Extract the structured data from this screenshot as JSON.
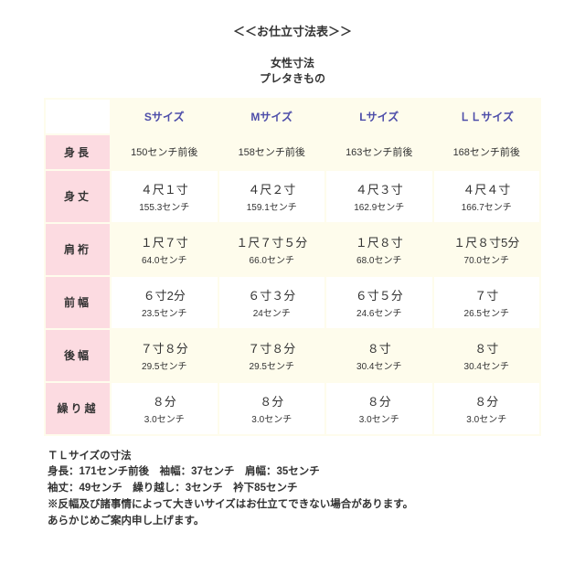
{
  "title": "＜＜お仕立寸法表＞＞",
  "subtitle1": "女性寸法",
  "subtitle2": "プレタきもの",
  "columns": [
    "Sサイズ",
    "Mサイズ",
    "Lサイズ",
    "ＬＬサイズ"
  ],
  "rows": [
    {
      "label": "身長",
      "band": "cream",
      "cells": [
        {
          "p": "150センチ前後"
        },
        {
          "p": "158センチ前後"
        },
        {
          "p": "163センチ前後"
        },
        {
          "p": "168センチ前後"
        }
      ]
    },
    {
      "label": "身丈",
      "band": "white",
      "cells": [
        {
          "p": "４尺１寸",
          "s": "155.3センチ"
        },
        {
          "p": "４尺２寸",
          "s": "159.1センチ"
        },
        {
          "p": "４尺３寸",
          "s": "162.9センチ"
        },
        {
          "p": "４尺４寸",
          "s": "166.7センチ"
        }
      ]
    },
    {
      "label": "肩裄",
      "band": "cream",
      "cells": [
        {
          "p": "１尺７寸",
          "s": "64.0センチ"
        },
        {
          "p": "１尺７寸５分",
          "s": "66.0センチ"
        },
        {
          "p": "１尺８寸",
          "s": "68.0センチ"
        },
        {
          "p": "１尺８寸5分",
          "s": "70.0センチ"
        }
      ]
    },
    {
      "label": "前幅",
      "band": "white",
      "cells": [
        {
          "p": "６寸2分",
          "s": "23.5センチ"
        },
        {
          "p": "６寸３分",
          "s": "24センチ"
        },
        {
          "p": "６寸５分",
          "s": "24.6センチ"
        },
        {
          "p": "７寸",
          "s": "26.5センチ"
        }
      ]
    },
    {
      "label": "後幅",
      "band": "cream",
      "cells": [
        {
          "p": "７寸８分",
          "s": "29.5センチ"
        },
        {
          "p": "７寸８分",
          "s": "29.5センチ"
        },
        {
          "p": "８寸",
          "s": "30.4センチ"
        },
        {
          "p": "８寸",
          "s": "30.4センチ"
        }
      ]
    },
    {
      "label": "繰り越",
      "band": "white",
      "cells": [
        {
          "p": "８分",
          "s": "3.0センチ"
        },
        {
          "p": "８分",
          "s": "3.0センチ"
        },
        {
          "p": "８分",
          "s": "3.0センチ"
        },
        {
          "p": "８分",
          "s": "3.0センチ"
        }
      ]
    }
  ],
  "notes": [
    "ＴＬサイズの寸法",
    "身長：171センチ前後　袖幅：37センチ　肩幅：35センチ",
    "袖丈：49センチ　繰り越し：3センチ　衿下85センチ",
    "※反幅及び諸事情によって大きいサイズはお仕立てできない場合があります。",
    "あらかじめご案内申し上げます。"
  ],
  "colors": {
    "cream": "#fefcec",
    "pink": "#fcdbe1",
    "header_text": "#4d4da9"
  }
}
